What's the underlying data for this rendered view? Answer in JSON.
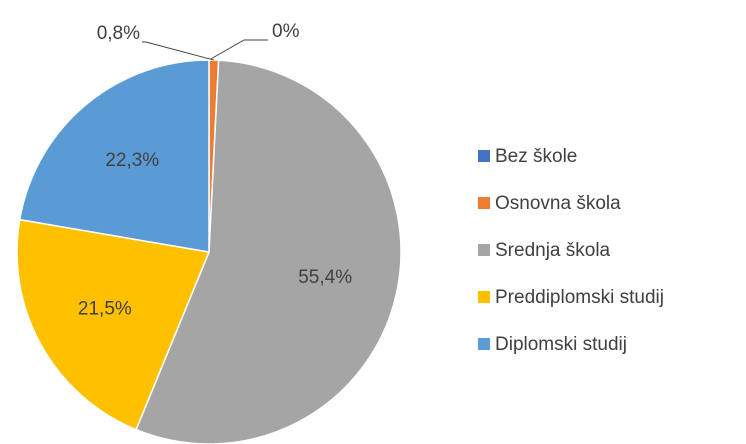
{
  "chart_data": {
    "type": "pie",
    "categories": [
      "Bez škole",
      "Osnovna škola",
      "Srednja škola",
      "Preddiplomski studij",
      "Diplomski studij"
    ],
    "values": [
      0,
      0.8,
      55.4,
      21.5,
      22.3
    ],
    "value_labels": [
      "0%",
      "0,8%",
      "55,4%",
      "21,5%",
      "22,3%"
    ],
    "colors": [
      "#4472c4",
      "#ed7d31",
      "#a5a5a5",
      "#ffc000",
      "#5b9bd5"
    ],
    "legend": "right"
  }
}
